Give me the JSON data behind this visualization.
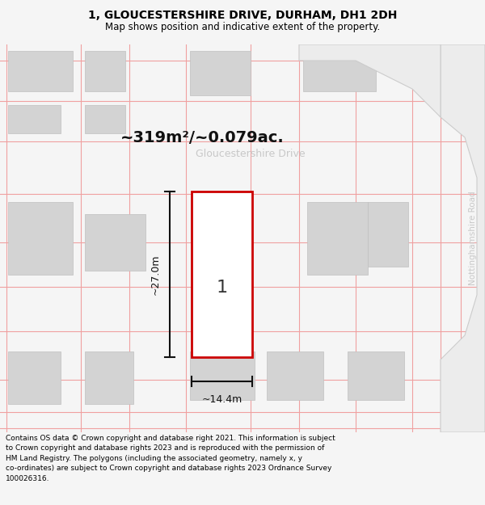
{
  "title_line1": "1, GLOUCESTERSHIRE DRIVE, DURHAM, DH1 2DH",
  "title_line2": "Map shows position and indicative extent of the property.",
  "area_label": "~319m²/~0.079ac.",
  "street_label_h": "Gloucestershire Drive",
  "street_label_v": "Nottinghamshire Road",
  "dim_vertical": "~27.0m",
  "dim_horizontal": "~14.4m",
  "property_number": "1",
  "footer_text": "Contains OS data © Crown copyright and database right 2021. This information is subject\nto Crown copyright and database rights 2023 and is reproduced with the permission of\nHM Land Registry. The polygons (including the associated geometry, namely x, y\nco-ordinates) are subject to Crown copyright and database rights 2023 Ordnance Survey\n100026316.",
  "bg_color": "#f5f5f5",
  "map_bg": "#f3f3f3",
  "property_edge_color": "#cc0000",
  "property_fill": "#ffffff",
  "building_color": "#d3d3d3",
  "building_edge": "#c0c0c0",
  "grid_line_color": "#f0a0a0",
  "dim_line_color": "#111111",
  "street_h_color": "#c8c8c8",
  "street_v_color": "#c8c8c8",
  "area_label_color": "#111111",
  "number_color": "#333333"
}
